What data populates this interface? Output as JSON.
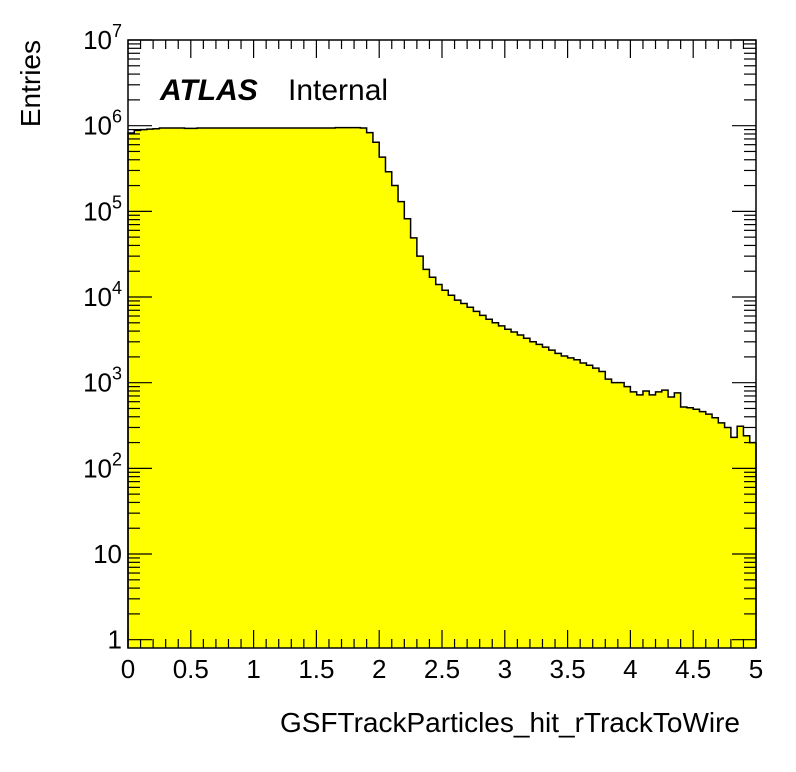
{
  "chart_data": {
    "type": "bar",
    "title": "",
    "xlabel": "GSFTrackParticles_hit_rTrackToWire",
    "ylabel": "Entries",
    "xlim": [
      0,
      5
    ],
    "ylim": [
      0.8,
      10000000
    ],
    "y_scale": "log",
    "grid": false,
    "fill_color": "#ffff00",
    "line_color": "#000000",
    "labels": {
      "experiment": "ATLAS",
      "status": "Internal"
    },
    "x_ticks": [
      {
        "value": 0,
        "label": "0"
      },
      {
        "value": 0.5,
        "label": "0.5"
      },
      {
        "value": 1,
        "label": "1"
      },
      {
        "value": 1.5,
        "label": "1.5"
      },
      {
        "value": 2,
        "label": "2"
      },
      {
        "value": 2.5,
        "label": "2.5"
      },
      {
        "value": 3,
        "label": "3"
      },
      {
        "value": 3.5,
        "label": "3.5"
      },
      {
        "value": 4,
        "label": "4"
      },
      {
        "value": 4.5,
        "label": "4.5"
      },
      {
        "value": 5,
        "label": "5"
      }
    ],
    "y_ticks": [
      {
        "value": 1,
        "label": "1"
      },
      {
        "value": 10,
        "label": "10"
      },
      {
        "value": 100,
        "base": "10",
        "exp": "2"
      },
      {
        "value": 1000,
        "base": "10",
        "exp": "3"
      },
      {
        "value": 10000,
        "base": "10",
        "exp": "4"
      },
      {
        "value": 100000,
        "base": "10",
        "exp": "5"
      },
      {
        "value": 1000000,
        "base": "10",
        "exp": "6"
      },
      {
        "value": 10000000,
        "base": "10",
        "exp": "7"
      }
    ],
    "bin_width": 0.05,
    "x_start": 0,
    "values": [
      820000,
      880000,
      900000,
      910000,
      920000,
      940000,
      940000,
      940000,
      940000,
      930000,
      930000,
      940000,
      940000,
      940000,
      940000,
      940000,
      940000,
      940000,
      940000,
      940000,
      940000,
      940000,
      940000,
      940000,
      940000,
      940000,
      940000,
      940000,
      940000,
      940000,
      940000,
      940000,
      940000,
      950000,
      950000,
      950000,
      950000,
      940000,
      830000,
      640000,
      430000,
      290000,
      200000,
      130000,
      82000,
      49000,
      30000,
      21000,
      17000,
      14000,
      12000,
      10500,
      9200,
      8400,
      7600,
      6800,
      6100,
      5500,
      5000,
      4600,
      4200,
      3900,
      3600,
      3300,
      3000,
      2800,
      2600,
      2400,
      2200,
      2050,
      1950,
      1850,
      1700,
      1600,
      1480,
      1350,
      1100,
      1000,
      1000,
      900,
      780,
      720,
      800,
      720,
      780,
      820,
      680,
      760,
      520,
      510,
      490,
      460,
      430,
      390,
      340,
      300,
      230,
      310,
      240,
      200
    ]
  }
}
